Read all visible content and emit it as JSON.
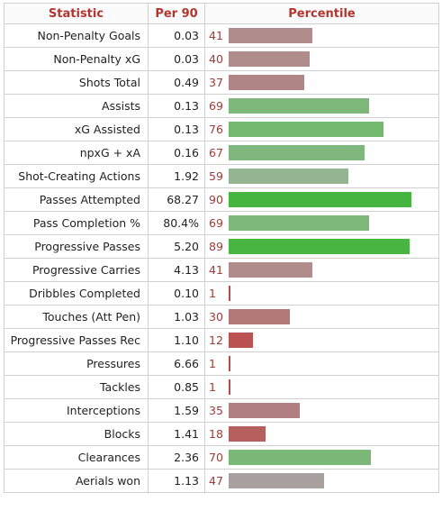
{
  "headers": {
    "statistic": "Statistic",
    "per90": "Per 90",
    "percentile": "Percentile"
  },
  "groups": [
    [
      {
        "stat": "Non-Penalty Goals",
        "per90": "0.03",
        "percentile": 41,
        "color": "#b08c8c"
      },
      {
        "stat": "Non-Penalty xG",
        "per90": "0.03",
        "percentile": 40,
        "color": "#b08c8c"
      },
      {
        "stat": "Shots Total",
        "per90": "0.49",
        "percentile": 37,
        "color": "#b08585"
      },
      {
        "stat": "Assists",
        "per90": "0.13",
        "percentile": 69,
        "color": "#7db87a"
      },
      {
        "stat": "xG Assisted",
        "per90": "0.13",
        "percentile": 76,
        "color": "#72b96e"
      },
      {
        "stat": "npxG + xA",
        "per90": "0.16",
        "percentile": 67,
        "color": "#80b77d"
      },
      {
        "stat": "Shot-Creating Actions",
        "per90": "1.92",
        "percentile": 59,
        "color": "#94b592"
      }
    ],
    [
      {
        "stat": "Passes Attempted",
        "per90": "68.27",
        "percentile": 90,
        "color": "#45b540"
      },
      {
        "stat": "Pass Completion %",
        "per90": "80.4%",
        "percentile": 69,
        "color": "#7db87a"
      },
      {
        "stat": "Progressive Passes",
        "per90": "5.20",
        "percentile": 89,
        "color": "#48b543"
      },
      {
        "stat": "Progressive Carries",
        "per90": "4.13",
        "percentile": 41,
        "color": "#b08c8c"
      },
      {
        "stat": "Dribbles Completed",
        "per90": "0.10",
        "percentile": 1,
        "color": "#b84a4a"
      },
      {
        "stat": "Touches (Att Pen)",
        "per90": "1.03",
        "percentile": 30,
        "color": "#b27878"
      },
      {
        "stat": "Progressive Passes Rec",
        "per90": "1.10",
        "percentile": 12,
        "color": "#bb5252"
      }
    ],
    [
      {
        "stat": "Pressures",
        "per90": "6.66",
        "percentile": 1,
        "color": "#b84a4a"
      },
      {
        "stat": "Tackles",
        "per90": "0.85",
        "percentile": 1,
        "color": "#b84a4a"
      },
      {
        "stat": "Interceptions",
        "per90": "1.59",
        "percentile": 35,
        "color": "#b08080"
      },
      {
        "stat": "Blocks",
        "per90": "1.41",
        "percentile": 18,
        "color": "#b55f5f"
      },
      {
        "stat": "Clearances",
        "per90": "2.36",
        "percentile": 70,
        "color": "#7bb878"
      },
      {
        "stat": "Aerials won",
        "per90": "1.13",
        "percentile": 47,
        "color": "#a9a0a0"
      }
    ]
  ]
}
